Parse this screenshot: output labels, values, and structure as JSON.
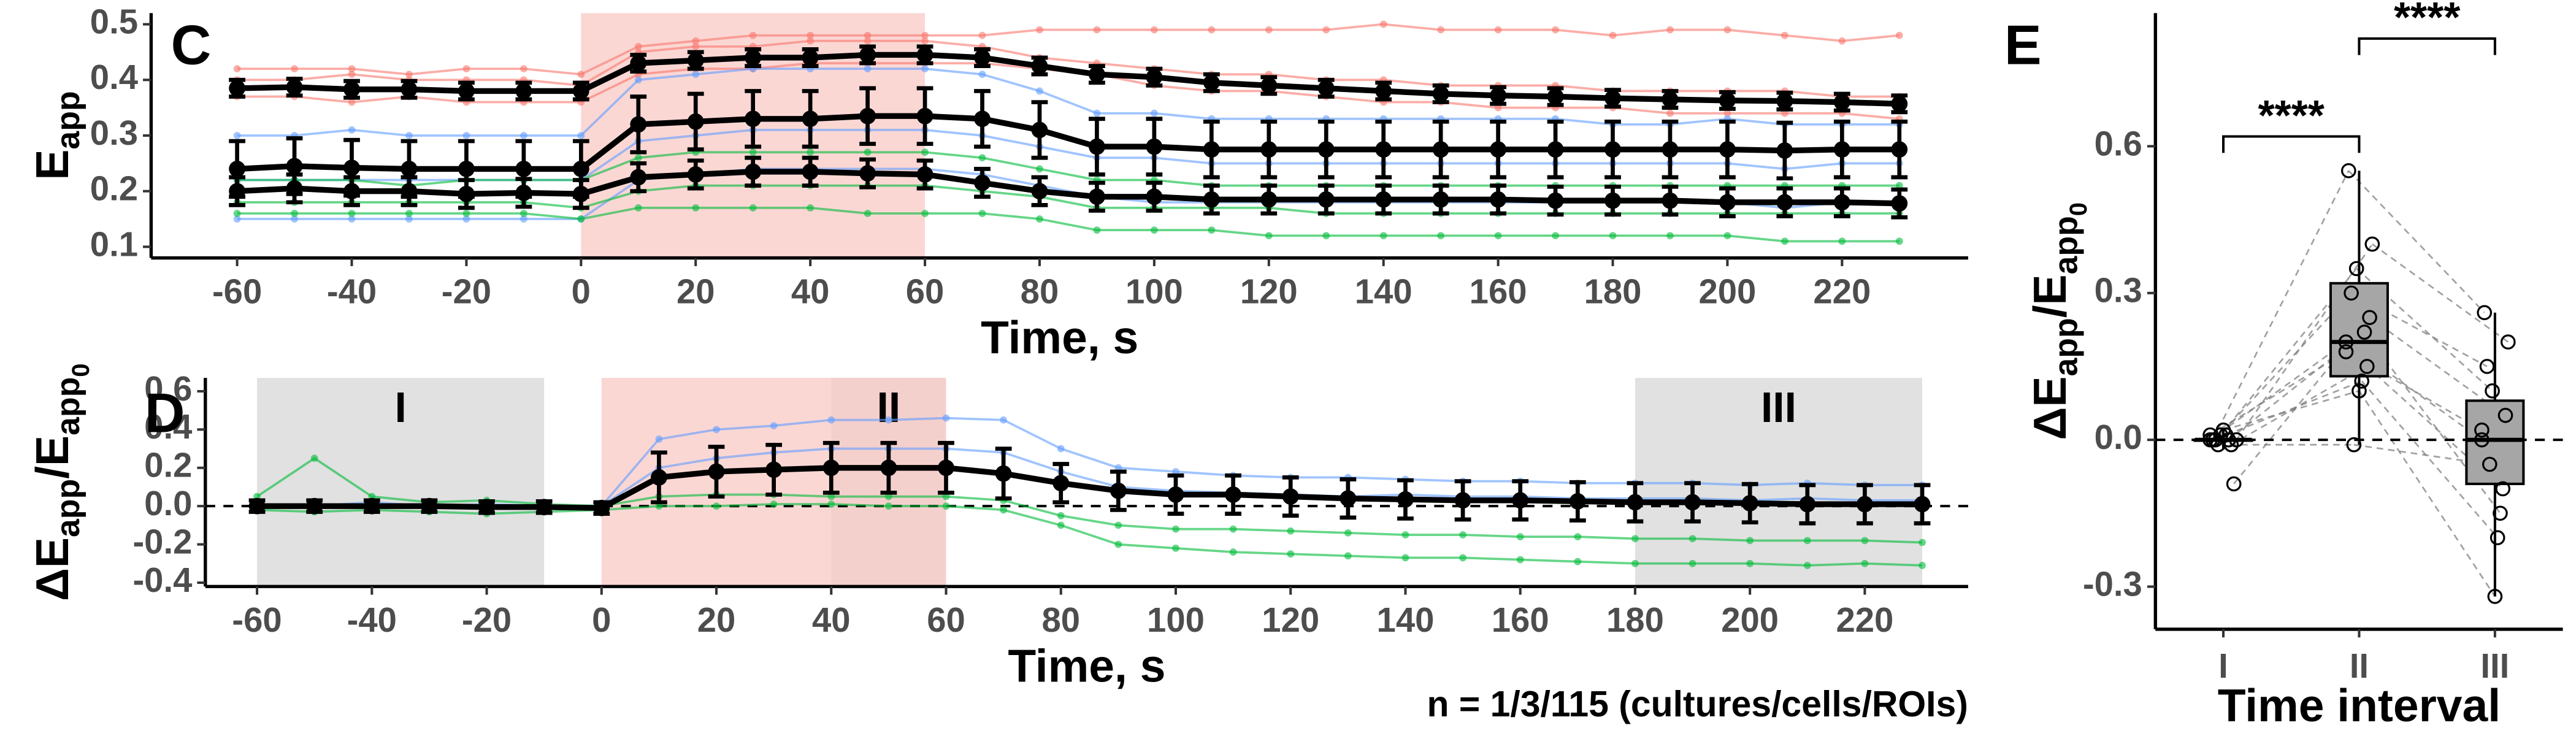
{
  "chart_data": [
    {
      "type": "line",
      "panel": "C",
      "x_label": "Time, s",
      "y_label": [
        {
          "text": "E"
        },
        {
          "text": "app",
          "level": 1
        }
      ],
      "x": [
        -60,
        -50,
        -40,
        -30,
        -20,
        -10,
        0,
        10,
        20,
        30,
        40,
        50,
        60,
        70,
        80,
        90,
        100,
        110,
        120,
        130,
        140,
        150,
        160,
        170,
        180,
        190,
        200,
        210,
        220,
        230
      ],
      "xlim": [
        -75,
        242
      ],
      "xticks": [
        -60,
        -40,
        -20,
        0,
        20,
        40,
        60,
        80,
        100,
        120,
        140,
        160,
        180,
        200,
        220
      ],
      "ylim": [
        0.08,
        0.52
      ],
      "yticks": [
        0.1,
        0.2,
        0.3,
        0.4,
        0.5
      ],
      "highlights": [
        {
          "from": 0,
          "to": 60,
          "color": "#f9c9c6"
        }
      ],
      "series": [
        {
          "color": "#f8766d",
          "values": [
            0.4,
            0.4,
            0.41,
            0.4,
            0.4,
            0.4,
            0.39,
            0.45,
            0.46,
            0.46,
            0.47,
            0.47,
            0.47,
            0.46,
            0.44,
            0.43,
            0.42,
            0.41,
            0.41,
            0.4,
            0.4,
            0.39,
            0.39,
            0.39,
            0.38,
            0.38,
            0.38,
            0.38,
            0.37,
            0.37
          ]
        },
        {
          "color": "#f8766d",
          "values": [
            0.37,
            0.37,
            0.36,
            0.37,
            0.36,
            0.36,
            0.36,
            0.41,
            0.42,
            0.42,
            0.43,
            0.43,
            0.43,
            0.43,
            0.42,
            0.41,
            0.39,
            0.38,
            0.38,
            0.37,
            0.36,
            0.36,
            0.35,
            0.35,
            0.35,
            0.34,
            0.34,
            0.34,
            0.34,
            0.33
          ]
        },
        {
          "color": "#f8766d",
          "values": [
            0.42,
            0.42,
            0.42,
            0.41,
            0.42,
            0.42,
            0.41,
            0.46,
            0.47,
            0.48,
            0.48,
            0.48,
            0.48,
            0.48,
            0.49,
            0.49,
            0.49,
            0.49,
            0.49,
            0.49,
            0.5,
            0.49,
            0.49,
            0.49,
            0.48,
            0.49,
            0.49,
            0.48,
            0.47,
            0.48
          ]
        },
        {
          "color": "#619cff",
          "values": [
            0.3,
            0.3,
            0.31,
            0.3,
            0.3,
            0.3,
            0.3,
            0.4,
            0.41,
            0.42,
            0.42,
            0.42,
            0.42,
            0.41,
            0.38,
            0.34,
            0.34,
            0.33,
            0.33,
            0.33,
            0.33,
            0.33,
            0.33,
            0.33,
            0.32,
            0.32,
            0.33,
            0.32,
            0.32,
            0.32
          ]
        },
        {
          "color": "#619cff",
          "values": [
            0.22,
            0.22,
            0.22,
            0.22,
            0.22,
            0.22,
            0.22,
            0.29,
            0.3,
            0.31,
            0.31,
            0.31,
            0.31,
            0.3,
            0.28,
            0.26,
            0.26,
            0.25,
            0.25,
            0.25,
            0.25,
            0.25,
            0.25,
            0.25,
            0.25,
            0.25,
            0.25,
            0.24,
            0.25,
            0.25
          ]
        },
        {
          "color": "#619cff",
          "values": [
            0.15,
            0.15,
            0.15,
            0.15,
            0.15,
            0.15,
            0.15,
            0.22,
            0.23,
            0.24,
            0.24,
            0.24,
            0.24,
            0.23,
            0.21,
            0.19,
            0.18,
            0.18,
            0.18,
            0.18,
            0.18,
            0.18,
            0.18,
            0.18,
            0.18,
            0.18,
            0.18,
            0.17,
            0.18,
            0.18
          ]
        },
        {
          "color": "#00ba38",
          "values": [
            0.22,
            0.22,
            0.22,
            0.21,
            0.22,
            0.22,
            0.22,
            0.26,
            0.27,
            0.27,
            0.27,
            0.27,
            0.27,
            0.26,
            0.24,
            0.22,
            0.22,
            0.21,
            0.21,
            0.21,
            0.21,
            0.21,
            0.21,
            0.21,
            0.21,
            0.21,
            0.21,
            0.21,
            0.21,
            0.21
          ]
        },
        {
          "color": "#00ba38",
          "values": [
            0.18,
            0.18,
            0.18,
            0.18,
            0.18,
            0.18,
            0.17,
            0.2,
            0.21,
            0.21,
            0.21,
            0.21,
            0.21,
            0.2,
            0.19,
            0.17,
            0.17,
            0.17,
            0.17,
            0.16,
            0.16,
            0.16,
            0.16,
            0.16,
            0.16,
            0.16,
            0.16,
            0.16,
            0.16,
            0.16
          ]
        },
        {
          "color": "#00ba38",
          "values": [
            0.16,
            0.16,
            0.16,
            0.16,
            0.16,
            0.16,
            0.15,
            0.17,
            0.17,
            0.17,
            0.17,
            0.16,
            0.16,
            0.16,
            0.15,
            0.13,
            0.13,
            0.13,
            0.12,
            0.12,
            0.12,
            0.12,
            0.12,
            0.12,
            0.12,
            0.12,
            0.12,
            0.11,
            0.11,
            0.11
          ]
        },
        {
          "color": "#000000",
          "values": [
            0.385,
            0.387,
            0.383,
            0.383,
            0.38,
            0.38,
            0.38,
            0.43,
            0.435,
            0.44,
            0.44,
            0.445,
            0.445,
            0.44,
            0.425,
            0.41,
            0.405,
            0.395,
            0.39,
            0.385,
            0.38,
            0.375,
            0.372,
            0.37,
            0.367,
            0.365,
            0.363,
            0.362,
            0.36,
            0.357
          ],
          "errors": [
            0.015,
            0.015,
            0.015,
            0.015,
            0.015,
            0.015,
            0.015,
            0.015,
            0.015,
            0.015,
            0.015,
            0.015,
            0.015,
            0.015,
            0.015,
            0.015,
            0.015,
            0.015,
            0.015,
            0.015,
            0.015,
            0.015,
            0.015,
            0.015,
            0.015,
            0.015,
            0.015,
            0.015,
            0.015,
            0.015
          ]
        },
        {
          "color": "#000000",
          "values": [
            0.24,
            0.245,
            0.242,
            0.24,
            0.24,
            0.24,
            0.24,
            0.32,
            0.325,
            0.33,
            0.33,
            0.335,
            0.335,
            0.33,
            0.31,
            0.28,
            0.28,
            0.275,
            0.275,
            0.275,
            0.275,
            0.275,
            0.275,
            0.275,
            0.275,
            0.275,
            0.275,
            0.273,
            0.275,
            0.275
          ],
          "errors": [
            0.05,
            0.05,
            0.05,
            0.05,
            0.05,
            0.05,
            0.05,
            0.05,
            0.05,
            0.05,
            0.05,
            0.05,
            0.05,
            0.05,
            0.05,
            0.05,
            0.05,
            0.05,
            0.05,
            0.05,
            0.05,
            0.05,
            0.05,
            0.05,
            0.05,
            0.05,
            0.05,
            0.05,
            0.05,
            0.05
          ]
        },
        {
          "color": "#000000",
          "values": [
            0.2,
            0.205,
            0.2,
            0.2,
            0.195,
            0.197,
            0.195,
            0.225,
            0.23,
            0.235,
            0.235,
            0.232,
            0.23,
            0.215,
            0.2,
            0.19,
            0.19,
            0.185,
            0.185,
            0.185,
            0.185,
            0.185,
            0.185,
            0.183,
            0.183,
            0.183,
            0.18,
            0.18,
            0.18,
            0.178
          ],
          "errors": [
            0.025,
            0.025,
            0.025,
            0.025,
            0.025,
            0.025,
            0.025,
            0.025,
            0.025,
            0.025,
            0.025,
            0.025,
            0.025,
            0.025,
            0.025,
            0.025,
            0.025,
            0.025,
            0.025,
            0.025,
            0.025,
            0.025,
            0.025,
            0.025,
            0.025,
            0.025,
            0.025,
            0.025,
            0.025,
            0.025
          ]
        }
      ]
    },
    {
      "type": "line",
      "panel": "D",
      "x_label": "Time, s",
      "y_label": [
        {
          "text": "ΔE"
        },
        {
          "text": "app",
          "level": 1
        },
        {
          "text": "/E"
        },
        {
          "text": "app",
          "level": 1
        },
        {
          "text": "0",
          "level": 2
        }
      ],
      "note": "n = 1/3/115 (cultures/cells/ROIs)",
      "x": [
        -60,
        -50,
        -40,
        -30,
        -20,
        -10,
        0,
        10,
        20,
        30,
        40,
        50,
        60,
        70,
        80,
        90,
        100,
        110,
        120,
        130,
        140,
        150,
        160,
        170,
        180,
        190,
        200,
        210,
        220,
        230
      ],
      "xlim": [
        -69,
        238
      ],
      "xticks": [
        -60,
        -40,
        -20,
        0,
        20,
        40,
        60,
        80,
        100,
        120,
        140,
        160,
        180,
        200,
        220
      ],
      "ylim": [
        -0.42,
        0.67
      ],
      "yticks": [
        -0.4,
        -0.2,
        {
          "value": 0,
          "label": "0.0"
        },
        0.2,
        0.4,
        0.6
      ],
      "hline": 0,
      "highlights": [
        {
          "from": 0,
          "to": 60,
          "color": "#f9c9c6"
        }
      ],
      "intervals": [
        {
          "label": "I",
          "from": -60,
          "to": -10
        },
        {
          "label": "II",
          "from": 40,
          "to": 60
        },
        {
          "label": "III",
          "from": 180,
          "to": 230
        }
      ],
      "series": [
        {
          "color": "#619cff",
          "values": [
            0,
            0.01,
            -0.01,
            0,
            0.01,
            0,
            0,
            0.35,
            0.4,
            0.42,
            0.45,
            0.45,
            0.46,
            0.45,
            0.3,
            0.2,
            0.18,
            0.16,
            0.15,
            0.15,
            0.14,
            0.13,
            0.13,
            0.12,
            0.12,
            0.12,
            0.11,
            0.12,
            0.11,
            0.11
          ]
        },
        {
          "color": "#619cff",
          "values": [
            0,
            0,
            0.02,
            0,
            -0.01,
            0,
            0,
            0.2,
            0.25,
            0.28,
            0.3,
            0.3,
            0.3,
            0.28,
            0.18,
            0.1,
            0.08,
            0.07,
            0.06,
            0.05,
            0.06,
            0.05,
            0.05,
            0.04,
            0.04,
            0.04,
            0.03,
            0.04,
            0.03,
            0.03
          ]
        },
        {
          "color": "#00ba38",
          "values": [
            0.05,
            0.25,
            0.05,
            0.02,
            0.03,
            0.01,
            0,
            0.05,
            0.06,
            0.06,
            0.05,
            0.05,
            0.05,
            0.03,
            -0.05,
            -0.1,
            -0.12,
            -0.12,
            -0.13,
            -0.14,
            -0.15,
            -0.15,
            -0.16,
            -0.16,
            -0.17,
            -0.17,
            -0.18,
            -0.18,
            -0.18,
            -0.19
          ]
        },
        {
          "color": "#00ba38",
          "values": [
            -0.02,
            -0.03,
            -0.02,
            -0.03,
            -0.04,
            -0.03,
            -0.02,
            0,
            0,
            0.01,
            0.01,
            0,
            0,
            -0.02,
            -0.1,
            -0.2,
            -0.22,
            -0.24,
            -0.25,
            -0.26,
            -0.27,
            -0.27,
            -0.28,
            -0.29,
            -0.3,
            -0.3,
            -0.3,
            -0.31,
            -0.3,
            -0.31
          ]
        },
        {
          "color": "#000000",
          "values": [
            0,
            0,
            0,
            0,
            -0.005,
            -0.005,
            -0.01,
            0.15,
            0.18,
            0.19,
            0.2,
            0.2,
            0.2,
            0.17,
            0.12,
            0.08,
            0.06,
            0.06,
            0.05,
            0.04,
            0.035,
            0.03,
            0.03,
            0.025,
            0.02,
            0.02,
            0.015,
            0.01,
            0.01,
            0.01
          ],
          "errors": [
            0.03,
            0.03,
            0.03,
            0.03,
            0.03,
            0.03,
            0.03,
            0.13,
            0.13,
            0.13,
            0.13,
            0.13,
            0.13,
            0.13,
            0.1,
            0.1,
            0.1,
            0.1,
            0.1,
            0.1,
            0.1,
            0.1,
            0.1,
            0.1,
            0.1,
            0.1,
            0.1,
            0.1,
            0.1,
            0.1
          ]
        }
      ]
    },
    {
      "type": "box",
      "panel": "E",
      "x_label": "Time interval",
      "y_label": [
        {
          "text": "ΔE"
        },
        {
          "text": "app",
          "level": 1
        },
        {
          "text": "/E"
        },
        {
          "text": "app",
          "level": 1
        },
        {
          "text": "0",
          "level": 2
        }
      ],
      "categories": [
        "I",
        "II",
        "III"
      ],
      "ylim": [
        -0.387,
        0.872
      ],
      "yticks": [
        -0.3,
        {
          "value": 0,
          "label": "0.0"
        },
        0.3,
        0.6
      ],
      "hline": 0,
      "boxes": [
        {
          "low": -0.02,
          "q1": 0,
          "median": 0,
          "q3": 0,
          "high": 0.02
        },
        {
          "low": -0.01,
          "q1": 0.13,
          "median": 0.2,
          "q3": 0.32,
          "high": 0.55
        },
        {
          "low": -0.32,
          "q1": -0.09,
          "median": 0,
          "q3": 0.08,
          "high": 0.26
        }
      ],
      "points": [
        [
          0,
          0.01,
          -0.01,
          0,
          0.02,
          -0.09,
          0,
          0.01,
          0,
          -0.01,
          0,
          0.01
        ],
        [
          0.2,
          0.35,
          0.15,
          0.55,
          0.1,
          0.25,
          0.3,
          0.12,
          0.4,
          -0.01,
          0.22,
          0.18
        ],
        [
          0,
          0.1,
          -0.1,
          0.26,
          -0.32,
          0.05,
          0.15,
          -0.2,
          0.2,
          -0.05,
          -0.15,
          0.02
        ]
      ],
      "comparisons": [
        {
          "groups": [
            0,
            1
          ],
          "label": "****"
        },
        {
          "groups": [
            1,
            2
          ],
          "label": "****"
        }
      ]
    }
  ]
}
